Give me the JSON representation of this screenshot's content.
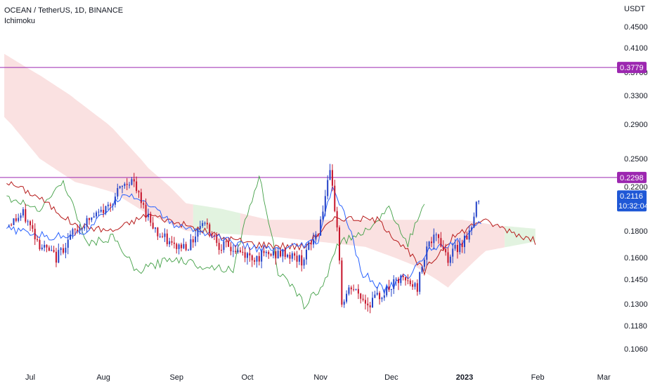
{
  "header": {
    "symbol_line": "OCEAN / TetherUS, 1D, BINANCE",
    "indicator": "Ichimoku"
  },
  "colors": {
    "up_candle": "#2342c8",
    "down_candle": "#c6142a",
    "tenkan": "#2962ff",
    "kijun": "#b71c1c",
    "chikou": "#43a047",
    "cloud_bear": "#f8d7d7",
    "cloud_bull": "#d8efd6",
    "horizontal_line": "#9c27b0",
    "price_badge": "#1f58d6"
  },
  "chart_data": {
    "type": "candlestick",
    "currency": "USDT",
    "y_ticks": [
      "0.4500",
      "0.4100",
      "0.3700",
      "0.3300",
      "0.2900",
      "0.2500",
      "0.2200",
      "0.1800",
      "0.1600",
      "0.1450",
      "0.1300",
      "0.1180",
      "0.1060"
    ],
    "x_ticks": [
      {
        "label": "Jul",
        "date": "2022-07-01"
      },
      {
        "label": "Aug",
        "date": "2022-08-01"
      },
      {
        "label": "Sep",
        "date": "2022-09-01"
      },
      {
        "label": "Oct",
        "date": "2022-10-01"
      },
      {
        "label": "Nov",
        "date": "2022-11-01"
      },
      {
        "label": "Dec",
        "date": "2022-12-01"
      },
      {
        "label": "2023",
        "date": "2023-01-01",
        "bold": true
      },
      {
        "label": "Feb",
        "date": "2023-02-01"
      },
      {
        "label": "Mar",
        "date": "2023-03-01"
      }
    ],
    "horizontal_lines": [
      {
        "value": 0.3779,
        "label": "0.3779"
      },
      {
        "value": 0.2298,
        "label": "0.2298"
      }
    ],
    "last_price": {
      "value": 0.2116,
      "label": "0.2116",
      "countdown": "10:32:04"
    },
    "close_path": [
      {
        "date": "2022-06-21",
        "value": 0.185
      },
      {
        "date": "2022-06-28",
        "value": 0.195
      },
      {
        "date": "2022-07-05",
        "value": 0.17
      },
      {
        "date": "2022-07-12",
        "value": 0.16
      },
      {
        "date": "2022-07-19",
        "value": 0.178
      },
      {
        "date": "2022-07-26",
        "value": 0.19
      },
      {
        "date": "2022-08-02",
        "value": 0.2
      },
      {
        "date": "2022-08-09",
        "value": 0.22
      },
      {
        "date": "2022-08-13",
        "value": 0.228
      },
      {
        "date": "2022-08-17",
        "value": 0.205
      },
      {
        "date": "2022-08-24",
        "value": 0.178
      },
      {
        "date": "2022-08-31",
        "value": 0.168
      },
      {
        "date": "2022-09-07",
        "value": 0.17
      },
      {
        "date": "2022-09-12",
        "value": 0.19
      },
      {
        "date": "2022-09-19",
        "value": 0.17
      },
      {
        "date": "2022-09-26",
        "value": 0.165
      },
      {
        "date": "2022-10-03",
        "value": 0.16
      },
      {
        "date": "2022-10-10",
        "value": 0.162
      },
      {
        "date": "2022-10-17",
        "value": 0.163
      },
      {
        "date": "2022-10-24",
        "value": 0.158
      },
      {
        "date": "2022-10-31",
        "value": 0.18
      },
      {
        "date": "2022-11-05",
        "value": 0.232
      },
      {
        "date": "2022-11-08",
        "value": 0.185
      },
      {
        "date": "2022-11-10",
        "value": 0.13
      },
      {
        "date": "2022-11-14",
        "value": 0.14
      },
      {
        "date": "2022-11-21",
        "value": 0.13
      },
      {
        "date": "2022-11-28",
        "value": 0.137
      },
      {
        "date": "2022-12-05",
        "value": 0.145
      },
      {
        "date": "2022-12-12",
        "value": 0.14
      },
      {
        "date": "2022-12-16",
        "value": 0.17
      },
      {
        "date": "2022-12-21",
        "value": 0.175
      },
      {
        "date": "2022-12-25",
        "value": 0.16
      },
      {
        "date": "2022-12-31",
        "value": 0.172
      },
      {
        "date": "2023-01-04",
        "value": 0.182
      },
      {
        "date": "2023-01-07",
        "value": 0.212
      }
    ],
    "tenkan_path": [
      {
        "date": "2022-06-21",
        "value": 0.182
      },
      {
        "date": "2022-07-10",
        "value": 0.175
      },
      {
        "date": "2022-07-25",
        "value": 0.18
      },
      {
        "date": "2022-08-10",
        "value": 0.215
      },
      {
        "date": "2022-08-20",
        "value": 0.205
      },
      {
        "date": "2022-08-31",
        "value": 0.185
      },
      {
        "date": "2022-09-15",
        "value": 0.178
      },
      {
        "date": "2022-09-30",
        "value": 0.168
      },
      {
        "date": "2022-10-15",
        "value": 0.165
      },
      {
        "date": "2022-10-31",
        "value": 0.172
      },
      {
        "date": "2022-11-06",
        "value": 0.22
      },
      {
        "date": "2022-11-12",
        "value": 0.19
      },
      {
        "date": "2022-11-18",
        "value": 0.15
      },
      {
        "date": "2022-11-28",
        "value": 0.138
      },
      {
        "date": "2022-12-10",
        "value": 0.15
      },
      {
        "date": "2022-12-18",
        "value": 0.168
      },
      {
        "date": "2022-12-31",
        "value": 0.172
      },
      {
        "date": "2023-01-08",
        "value": 0.188
      }
    ],
    "kijun_path": [
      {
        "date": "2022-06-21",
        "value": 0.225
      },
      {
        "date": "2022-07-05",
        "value": 0.21
      },
      {
        "date": "2022-07-20",
        "value": 0.185
      },
      {
        "date": "2022-08-05",
        "value": 0.18
      },
      {
        "date": "2022-08-20",
        "value": 0.195
      },
      {
        "date": "2022-09-05",
        "value": 0.185
      },
      {
        "date": "2022-09-20",
        "value": 0.175
      },
      {
        "date": "2022-10-05",
        "value": 0.17
      },
      {
        "date": "2022-10-25",
        "value": 0.168
      },
      {
        "date": "2022-11-08",
        "value": 0.192
      },
      {
        "date": "2022-11-25",
        "value": 0.19
      },
      {
        "date": "2022-12-15",
        "value": 0.15
      },
      {
        "date": "2022-12-25",
        "value": 0.172
      },
      {
        "date": "2023-01-08",
        "value": 0.19
      },
      {
        "date": "2023-01-31",
        "value": 0.172
      }
    ],
    "chikou_path": [
      {
        "date": "2022-06-21",
        "value": 0.21
      },
      {
        "date": "2022-07-05",
        "value": 0.2
      },
      {
        "date": "2022-07-15",
        "value": 0.225
      },
      {
        "date": "2022-07-25",
        "value": 0.17
      },
      {
        "date": "2022-08-05",
        "value": 0.175
      },
      {
        "date": "2022-08-15",
        "value": 0.15
      },
      {
        "date": "2022-08-31",
        "value": 0.16
      },
      {
        "date": "2022-09-10",
        "value": 0.155
      },
      {
        "date": "2022-09-25",
        "value": 0.152
      },
      {
        "date": "2022-10-06",
        "value": 0.23
      },
      {
        "date": "2022-10-14",
        "value": 0.15
      },
      {
        "date": "2022-10-25",
        "value": 0.13
      },
      {
        "date": "2022-11-02",
        "value": 0.14
      },
      {
        "date": "2022-11-08",
        "value": 0.17
      },
      {
        "date": "2022-11-20",
        "value": 0.18
      },
      {
        "date": "2022-11-30",
        "value": 0.2
      },
      {
        "date": "2022-12-08",
        "value": 0.17
      },
      {
        "date": "2022-12-15",
        "value": 0.205
      }
    ],
    "cloud_path": {
      "top": [
        {
          "date": "2022-06-20",
          "value": 0.4
        },
        {
          "date": "2022-07-05",
          "value": 0.365
        },
        {
          "date": "2022-07-20",
          "value": 0.325
        },
        {
          "date": "2022-08-05",
          "value": 0.285
        },
        {
          "date": "2022-08-20",
          "value": 0.24
        },
        {
          "date": "2022-09-05",
          "value": 0.205
        },
        {
          "date": "2022-09-20",
          "value": 0.2
        },
        {
          "date": "2022-10-10",
          "value": 0.19
        },
        {
          "date": "2022-10-31",
          "value": 0.19
        },
        {
          "date": "2022-11-20",
          "value": 0.19
        },
        {
          "date": "2022-12-10",
          "value": 0.19
        },
        {
          "date": "2022-12-31",
          "value": 0.19
        },
        {
          "date": "2023-01-15",
          "value": 0.185
        },
        {
          "date": "2023-01-31",
          "value": 0.182
        }
      ],
      "bottom": [
        {
          "date": "2022-06-20",
          "value": 0.3
        },
        {
          "date": "2022-07-05",
          "value": 0.25
        },
        {
          "date": "2022-07-20",
          "value": 0.225
        },
        {
          "date": "2022-08-05",
          "value": 0.215
        },
        {
          "date": "2022-08-20",
          "value": 0.195
        },
        {
          "date": "2022-09-05",
          "value": 0.18
        },
        {
          "date": "2022-09-20",
          "value": 0.178
        },
        {
          "date": "2022-10-10",
          "value": 0.176
        },
        {
          "date": "2022-10-31",
          "value": 0.172
        },
        {
          "date": "2022-11-20",
          "value": 0.168
        },
        {
          "date": "2022-12-10",
          "value": 0.155
        },
        {
          "date": "2022-12-25",
          "value": 0.14
        },
        {
          "date": "2023-01-10",
          "value": 0.165
        },
        {
          "date": "2023-01-31",
          "value": 0.172
        }
      ]
    }
  }
}
